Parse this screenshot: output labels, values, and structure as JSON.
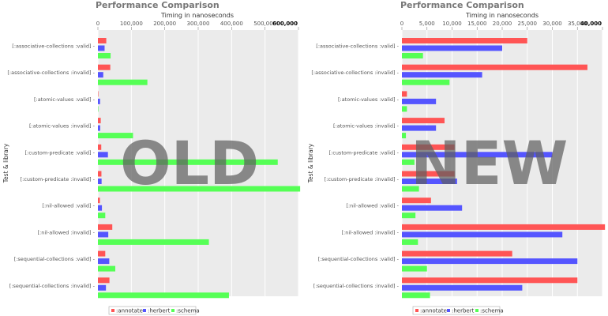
{
  "chart_data": [
    {
      "type": "bar",
      "orientation": "horizontal",
      "title": "Performance Comparison",
      "xlabel": "Timing in nanoseconds",
      "ylabel": "Test & library",
      "xlim": [
        0,
        600000
      ],
      "xticks": [
        "0",
        "100,000",
        "200,000",
        "300,000",
        "400,000",
        "500,000",
        "600,000"
      ],
      "categories": [
        "[:associative-collections :valid]",
        "[:associative-collections :invalid]",
        "[:atomic-values :valid]",
        "[:atomic-values :invalid]",
        "[:custom-predicate :valid]",
        "[:custom-predicate :invalid]",
        "[:nil-allowed :valid]",
        "[:nil-allowed :invalid]",
        "[:sequential-collections :valid]",
        "[:sequential-collections :invalid]"
      ],
      "series": [
        {
          "name": ":annotate",
          "color": "#ff5555",
          "values": [
            25000,
            37000,
            1000,
            8500,
            10000,
            10500,
            6000,
            43000,
            22000,
            34500
          ]
        },
        {
          "name": ":herbert",
          "color": "#5555ff",
          "values": [
            20000,
            16000,
            6500,
            6800,
            30000,
            11000,
            12000,
            31000,
            34000,
            24000
          ]
        },
        {
          "name": ":schema",
          "color": "#55ff55",
          "values": [
            38000,
            148000,
            1000,
            105000,
            538000,
            605000,
            22000,
            332000,
            52000,
            392000
          ]
        }
      ],
      "grid": true,
      "legend": "bottom-left",
      "overlay_text": "OLD"
    },
    {
      "type": "bar",
      "orientation": "horizontal",
      "title": "Performance Comparison",
      "xlabel": "Timing in nanoseconds",
      "ylabel": "Test & library",
      "xlim": [
        0,
        40000
      ],
      "xticks": [
        "0",
        "5,000",
        "10,000",
        "15,000",
        "20,000",
        "25,000",
        "30,000",
        "35,000",
        "40,000"
      ],
      "categories": [
        "[:associative-collections :valid]",
        "[:associative-collections :invalid]",
        "[:atomic-values :valid]",
        "[:atomic-values :invalid]",
        "[:custom-predicate :valid]",
        "[:custom-predicate :invalid]",
        "[:nil-allowed :valid]",
        "[:nil-allowed :invalid]",
        "[:sequential-collections :valid]",
        "[:sequential-collections :invalid]"
      ],
      "series": [
        {
          "name": ":annotate",
          "color": "#ff5555",
          "values": [
            25000,
            37000,
            1000,
            8500,
            10500,
            10500,
            5800,
            40500,
            22000,
            35000
          ]
        },
        {
          "name": ":herbert",
          "color": "#5555ff",
          "values": [
            20000,
            16000,
            6800,
            6800,
            30000,
            11000,
            12000,
            32000,
            35000,
            24000
          ]
        },
        {
          "name": ":schema",
          "color": "#55ff55",
          "values": [
            4200,
            9500,
            1000,
            800,
            2500,
            3400,
            2700,
            3200,
            5000,
            5600
          ]
        }
      ],
      "grid": true,
      "legend": "bottom-left",
      "overlay_text": "NEW"
    }
  ]
}
